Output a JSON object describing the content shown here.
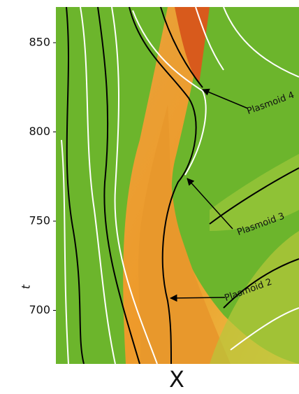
{
  "chart_data": {
    "type": "field",
    "xlabel": "X",
    "ylabel": "t",
    "ylim": [
      670,
      870
    ],
    "yticks": [
      700,
      750,
      800,
      850
    ],
    "annotations": [
      "Plasmoid 4",
      "Plasmoid 3",
      "Plasmoid 2"
    ]
  }
}
